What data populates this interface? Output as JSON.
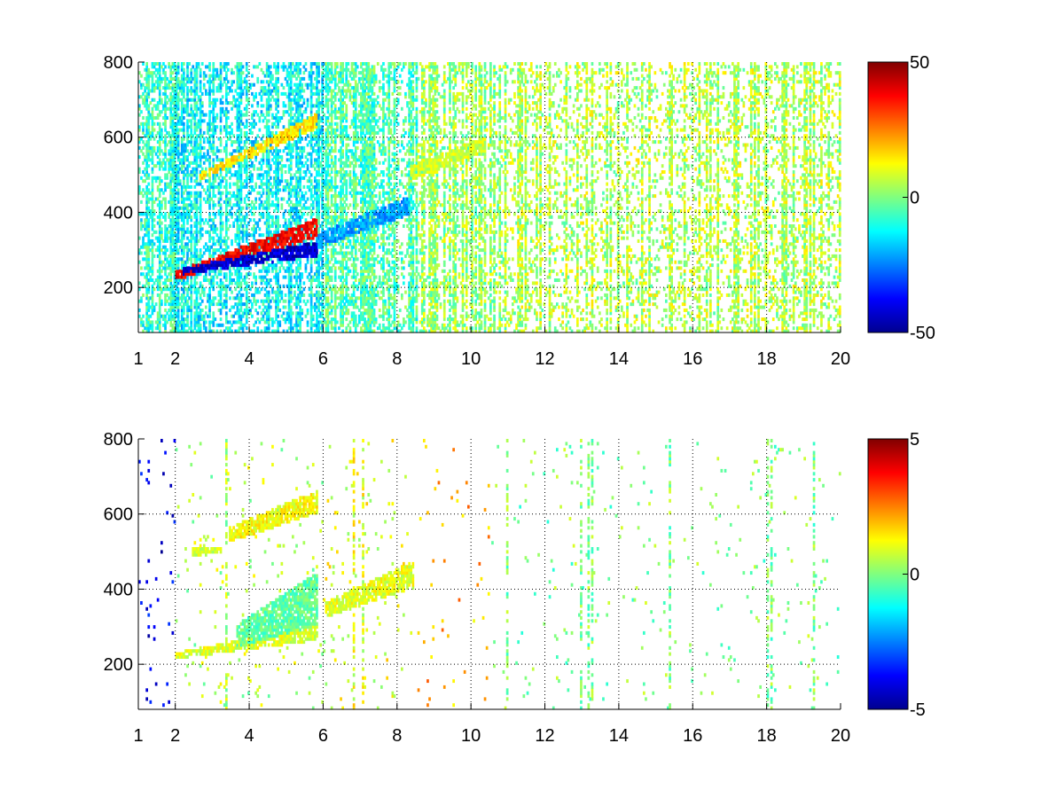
{
  "chart_data": [
    {
      "type": "heatmap",
      "title": "",
      "xlabel": "",
      "ylabel": "",
      "xlim": [
        1,
        20
      ],
      "ylim": [
        80,
        800
      ],
      "xticks": [
        "1",
        "2",
        "4",
        "6",
        "8",
        "10",
        "12",
        "14",
        "16",
        "18",
        "20"
      ],
      "xtick_values": [
        1,
        2,
        4,
        6,
        8,
        10,
        12,
        14,
        16,
        18,
        20
      ],
      "yticks": [
        "200",
        "400",
        "600",
        "800"
      ],
      "ytick_values": [
        200,
        400,
        600,
        800
      ],
      "grid": true,
      "colormap": "jet",
      "colorbar": {
        "min": -50,
        "max": 50,
        "ticks": [
          "50",
          "0",
          "-50"
        ],
        "tick_values": [
          50,
          0,
          -50
        ]
      },
      "value_bands": [
        {
          "x0": 2.0,
          "x1": 5.8,
          "y0": 215,
          "y1": 240,
          "y0_end": 330,
          "y1_end": 380,
          "value": 38
        },
        {
          "x0": 2.2,
          "x1": 5.8,
          "y0": 232,
          "y1": 250,
          "y0_end": 280,
          "y1_end": 320,
          "value": -42
        },
        {
          "x0": 2.6,
          "x1": 5.8,
          "y0": 480,
          "y1": 500,
          "y0_end": 620,
          "y1_end": 660,
          "value": 15
        },
        {
          "x0": 5.8,
          "x1": 8.3,
          "y0": 300,
          "y1": 340,
          "y0_end": 390,
          "y1_end": 440,
          "value": -22
        },
        {
          "x0": 8.3,
          "x1": 10.4,
          "y0": 480,
          "y1": 520,
          "y0_end": 560,
          "y1_end": 600,
          "value": 8
        }
      ],
      "column_bands": [
        {
          "x0": 1.0,
          "x1": 2.0,
          "value": -8
        },
        {
          "x0": 2.0,
          "x1": 6.0,
          "value": -12
        },
        {
          "x0": 6.0,
          "x1": 8.5,
          "value": -5
        },
        {
          "x0": 8.5,
          "x1": 11.0,
          "value": 3
        },
        {
          "x0": 11.0,
          "x1": 20.0,
          "value": 5
        }
      ]
    },
    {
      "type": "heatmap",
      "title": "",
      "xlabel": "",
      "ylabel": "",
      "xlim": [
        1,
        20
      ],
      "ylim": [
        80,
        800
      ],
      "xticks": [
        "1",
        "2",
        "4",
        "6",
        "8",
        "10",
        "12",
        "14",
        "16",
        "18",
        "20"
      ],
      "xtick_values": [
        1,
        2,
        4,
        6,
        8,
        10,
        12,
        14,
        16,
        18,
        20
      ],
      "yticks": [
        "200",
        "400",
        "600",
        "800"
      ],
      "ytick_values": [
        200,
        400,
        600,
        800
      ],
      "grid": true,
      "colormap": "jet",
      "colorbar": {
        "min": -5,
        "max": 5,
        "ticks": [
          "5",
          "0",
          "-5"
        ],
        "tick_values": [
          5,
          0,
          -5
        ]
      },
      "value_bands": [
        {
          "x0": 2.0,
          "x1": 5.8,
          "y0": 212,
          "y1": 228,
          "y0_end": 260,
          "y1_end": 300,
          "value": 0.9
        },
        {
          "x0": 3.6,
          "x1": 5.8,
          "y0": 240,
          "y1": 300,
          "y0_end": 300,
          "y1_end": 440,
          "value": -0.3
        },
        {
          "x0": 3.4,
          "x1": 5.8,
          "y0": 520,
          "y1": 560,
          "y0_end": 600,
          "y1_end": 660,
          "value": 1.2
        },
        {
          "x0": 2.4,
          "x1": 3.2,
          "y0": 485,
          "y1": 505,
          "y0_end": 490,
          "y1_end": 505,
          "value": 0.8
        },
        {
          "x0": 6.0,
          "x1": 8.4,
          "y0": 320,
          "y1": 360,
          "y0_end": 400,
          "y1_end": 470,
          "value": 1.0
        }
      ],
      "column_bands": [
        {
          "x0": 1.0,
          "x1": 2.0,
          "value": -4
        },
        {
          "x0": 2.0,
          "x1": 6.0,
          "value": 0.5
        },
        {
          "x0": 6.0,
          "x1": 8.5,
          "value": 1.0
        },
        {
          "x0": 8.5,
          "x1": 10.5,
          "value": 2
        }
      ]
    }
  ]
}
